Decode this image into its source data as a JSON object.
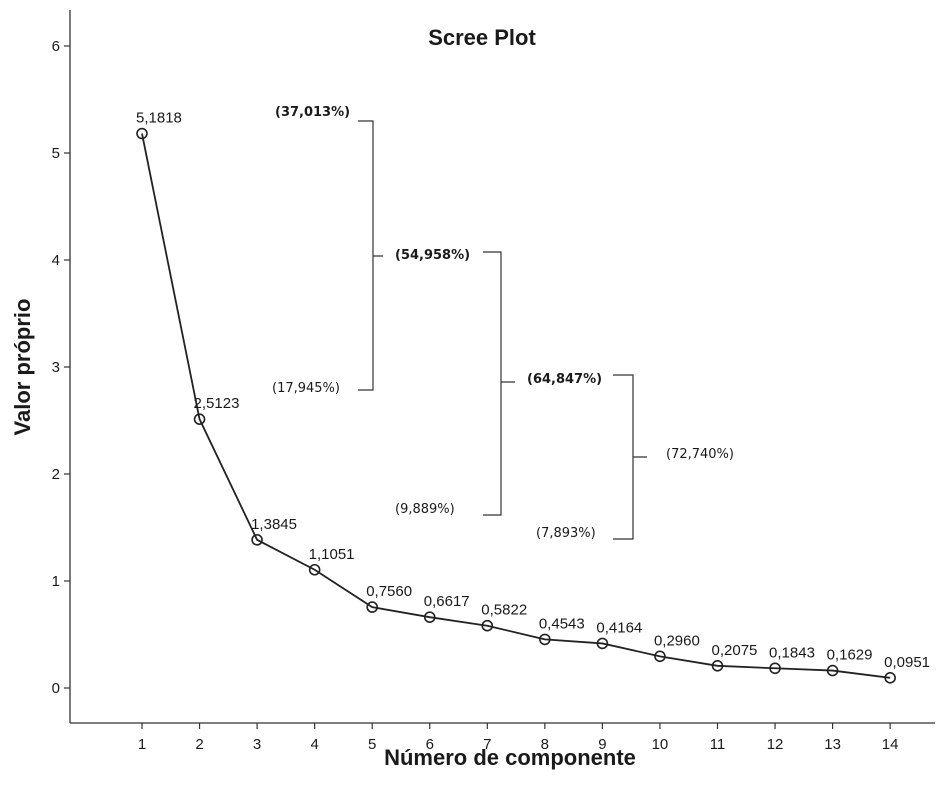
{
  "chart_data": {
    "type": "line",
    "title": "Scree Plot",
    "xlabel": "Número de componente",
    "ylabel": "Valor próprio",
    "x": [
      1,
      2,
      3,
      4,
      5,
      6,
      7,
      8,
      9,
      10,
      11,
      12,
      13,
      14
    ],
    "values": [
      5.1818,
      2.5123,
      1.3845,
      1.1051,
      0.756,
      0.6617,
      0.5822,
      0.4543,
      0.4164,
      0.296,
      0.2075,
      0.1843,
      0.1629,
      0.0951
    ],
    "data_labels": [
      "5,1818",
      "2,5123",
      "1,3845",
      "1,1051",
      "0,7560",
      "0,6617",
      "0,5822",
      "0,4543",
      "0,4164",
      "0,2960",
      "0,2075",
      "0,1843",
      "0,1629",
      "0,0951"
    ],
    "x_ticks": [
      "1",
      "2",
      "3",
      "4",
      "5",
      "6",
      "7",
      "8",
      "9",
      "10",
      "11",
      "12",
      "13",
      "14"
    ],
    "y_ticks": [
      "0",
      "1",
      "2",
      "3",
      "4",
      "5",
      "6"
    ],
    "ylim": [
      0,
      6
    ],
    "xlim": [
      0.5,
      14.5
    ],
    "marker": "open-circle",
    "grid": false,
    "annotations": [
      {
        "text": "(37,013%)",
        "bold": true
      },
      {
        "text": "(17,945%)",
        "bold": false
      },
      {
        "text": "(54,958%)",
        "bold": true
      },
      {
        "text": "(9,889%)",
        "bold": false
      },
      {
        "text": "(64,847%)",
        "bold": true
      },
      {
        "text": "(7,893%)",
        "bold": false
      },
      {
        "text": "(72,740%)",
        "bold": false
      }
    ]
  }
}
